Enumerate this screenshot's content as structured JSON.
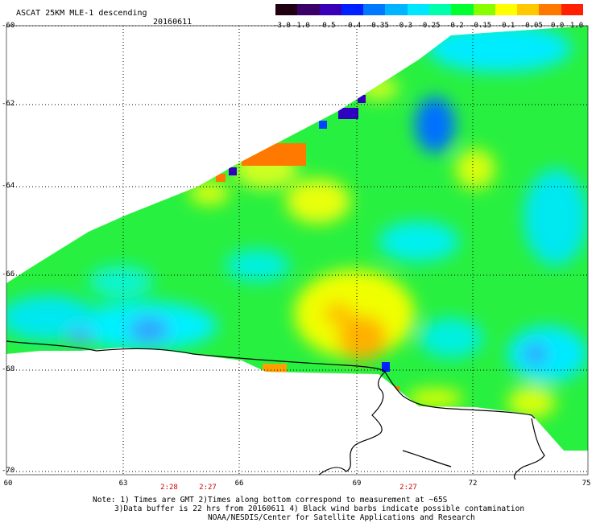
{
  "header": {
    "title": "ASCAT 25KM MLE-1 descending",
    "date": "20160611"
  },
  "colorbar": {
    "tick_labels": [
      "-3.0",
      "-1.0",
      "-0.5",
      "-0.4",
      "-0.35",
      "-0.3",
      "-0.25",
      "-0.2",
      "-0.15",
      "-0.1",
      "-0.05",
      "0.0",
      "1.0"
    ],
    "colors": [
      "#200010",
      "#3a0068",
      "#3a00b8",
      "#0020ff",
      "#0078ff",
      "#00b4ff",
      "#00e6ff",
      "#00ffaa",
      "#00ff30",
      "#88ff00",
      "#ffff00",
      "#ffc800",
      "#ff7800",
      "#ff2000"
    ]
  },
  "map": {
    "lat_labels": [
      "-60",
      "-62",
      "-64",
      "-66",
      "-68",
      "-70"
    ],
    "lon_labels": [
      "60",
      "63",
      "66",
      "69",
      "72",
      "75"
    ],
    "grid_line_color": "#000000",
    "coastline_color": "#000000"
  },
  "times": [
    "2:28",
    "2:27",
    "2:27"
  ],
  "notes": {
    "line1": "Note: 1) Times are GMT 2)Times along bottom correspond to measurement at ~65S",
    "line2": "3)Data buffer is 22 hrs from 20160611 4) Black wind barbs indicate possible contamination",
    "line3": "NOAA/NESDIS/Center for Satellite Applications and Research"
  }
}
